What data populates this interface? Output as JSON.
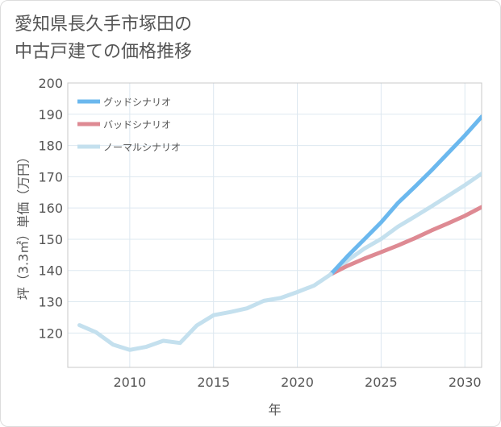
{
  "title": "愛知県長久手市塚田の\n中古戸建ての価格推移",
  "chart_data": {
    "type": "line",
    "xlabel": "年",
    "ylabel": "坪（3.3㎡）単価（万円）",
    "xlim": [
      2006.3,
      2031
    ],
    "ylim": [
      109,
      200
    ],
    "xticks": [
      2010,
      2015,
      2020,
      2025,
      2030
    ],
    "yticks": [
      120,
      130,
      140,
      150,
      160,
      170,
      180,
      190,
      200
    ],
    "grid": true,
    "legend_position": "top-left",
    "history": {
      "x": [
        2007,
        2008,
        2009,
        2010,
        2011,
        2012,
        2013,
        2014,
        2015,
        2016,
        2017,
        2018,
        2019,
        2020,
        2021,
        2022
      ],
      "y": [
        122.5,
        120.2,
        116.3,
        114.6,
        115.6,
        117.5,
        116.8,
        122.4,
        125.7,
        126.7,
        127.9,
        130.3,
        131.2,
        133.1,
        135.2,
        138.8
      ]
    },
    "series": [
      {
        "name": "グッドシナリオ",
        "color": "#6bb8ee",
        "x": [
          2022,
          2023,
          2024,
          2025,
          2026,
          2027,
          2028,
          2029,
          2030,
          2031
        ],
        "y": [
          138.8,
          144.6,
          150.0,
          155.4,
          161.6,
          166.7,
          172.0,
          177.6,
          183.2,
          189.2
        ]
      },
      {
        "name": "バッドシナリオ",
        "color": "#de8a93",
        "x": [
          2022,
          2023,
          2024,
          2025,
          2026,
          2027,
          2028,
          2029,
          2030,
          2031
        ],
        "y": [
          138.8,
          141.5,
          143.8,
          145.9,
          148.0,
          150.3,
          152.8,
          155.1,
          157.5,
          160.3
        ]
      },
      {
        "name": "ノーマルシナリオ",
        "color": "#c4e0ee",
        "x": [
          2022,
          2023,
          2024,
          2025,
          2026,
          2027,
          2028,
          2029,
          2030,
          2031
        ],
        "y": [
          138.8,
          143.2,
          147.0,
          150.1,
          154.0,
          157.2,
          160.5,
          163.9,
          167.3,
          171.0
        ]
      }
    ]
  }
}
